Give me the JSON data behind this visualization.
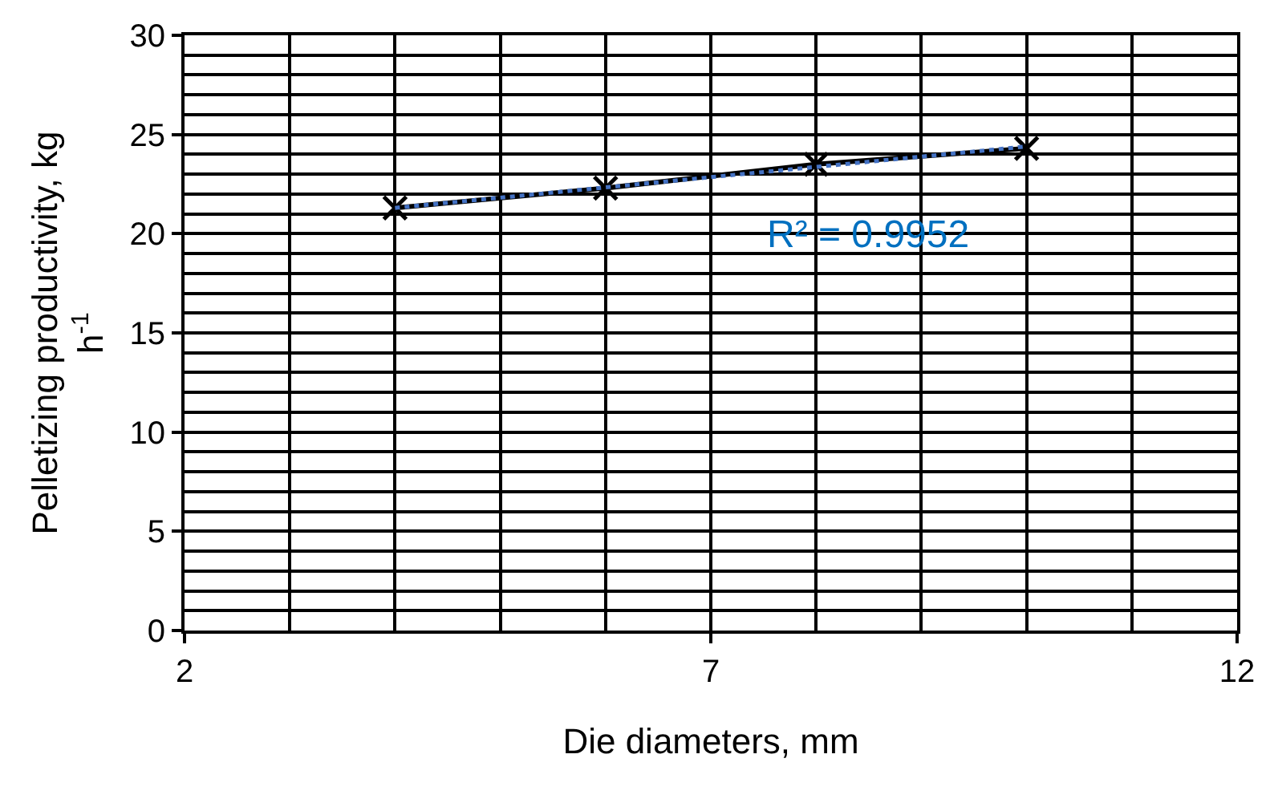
{
  "chart_data": {
    "type": "line",
    "xlabel": "Die diameters, mm",
    "ylabel": "Pelletizing productivity, kg h$^{-1}$",
    "x": [
      4,
      6,
      8,
      10
    ],
    "series": [
      {
        "color": "#000000",
        "values": [
          21.3,
          22.3,
          23.5,
          24.3
        ],
        "marker": "cross",
        "line_style": "solid"
      },
      {
        "type": "line",
        "x": [
          4,
          10
        ],
        "color": "#4472c4",
        "values": [
          21.3,
          24.4
        ],
        "marker": "none",
        "line_style": "dotted"
      }
    ],
    "annotations": [
      "R² = 0.9952"
    ],
    "xlim": [
      2,
      12
    ],
    "xticks": [
      2,
      7,
      12
    ],
    "ylim": [
      0,
      30
    ],
    "yticks": [
      0,
      5,
      10,
      15,
      20,
      25,
      30
    ],
    "grid": true,
    "legend": false
  }
}
